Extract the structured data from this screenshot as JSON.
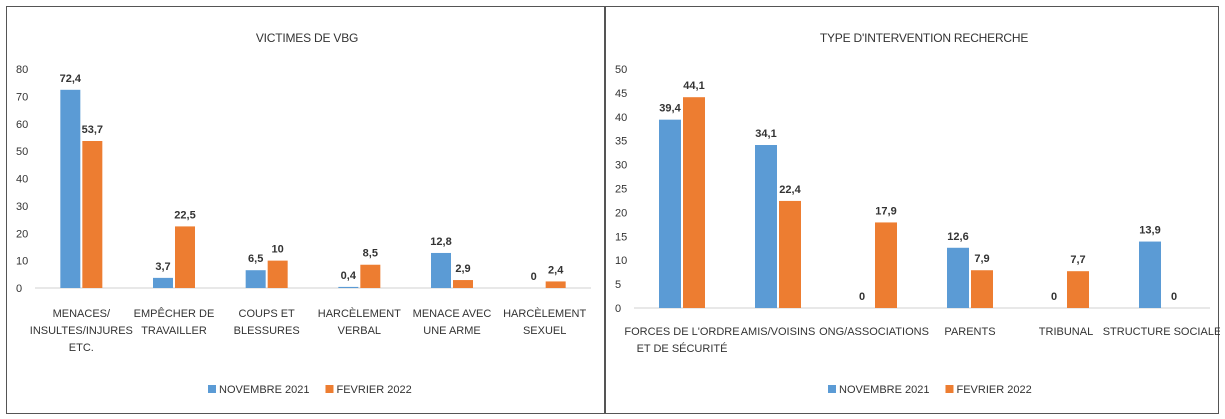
{
  "chart_data": [
    {
      "type": "bar",
      "title": "VICTIMES DE VBG",
      "categories": [
        [
          "MENACES/",
          "INSULTES/INJURES",
          "ETC."
        ],
        [
          "EMPÊCHER DE",
          "TRAVAILLER"
        ],
        [
          "COUPS ET",
          "BLESSURES"
        ],
        [
          "HARCÈLEMENT",
          "VERBAL"
        ],
        [
          "MENACE AVEC",
          "UNE ARME"
        ],
        [
          "HARCÈLEMENT",
          "SEXUEL"
        ]
      ],
      "series": [
        {
          "name": "NOVEMBRE 2021",
          "color": "#5B9BD5",
          "values": [
            72.4,
            3.7,
            6.5,
            0.4,
            12.8,
            0
          ],
          "labels": [
            "72,4",
            "3,7",
            "6,5",
            "0,4",
            "12,8",
            "0"
          ]
        },
        {
          "name": "FEVRIER 2022",
          "color": "#ED7D31",
          "values": [
            53.7,
            22.5,
            10,
            8.5,
            2.9,
            2.4
          ],
          "labels": [
            "53,7",
            "22,5",
            "10",
            "8,5",
            "2,9",
            "2,4"
          ]
        }
      ],
      "ylim": [
        0,
        80
      ],
      "yticks": [
        0,
        10,
        20,
        30,
        40,
        50,
        60,
        70,
        80
      ],
      "grid": false,
      "legend": "bottom"
    },
    {
      "type": "bar",
      "title": "TYPE D'INTERVENTION RECHERCHE",
      "categories": [
        [
          "FORCES DE L'ORDRE",
          "ET DE SÉCURITÉ"
        ],
        [
          "AMIS/VOISINS"
        ],
        [
          "ONG/ASSOCIATIONS"
        ],
        [
          "PARENTS"
        ],
        [
          "TRIBUNAL"
        ],
        [
          "STRUCTURE SOCIALE"
        ]
      ],
      "series": [
        {
          "name": "NOVEMBRE 2021",
          "color": "#5B9BD5",
          "values": [
            39.4,
            34.1,
            0,
            12.6,
            0,
            13.9
          ],
          "labels": [
            "39,4",
            "34,1",
            "0",
            "12,6",
            "0",
            "13,9"
          ]
        },
        {
          "name": "FEVRIER 2022",
          "color": "#ED7D31",
          "values": [
            44.1,
            22.4,
            17.9,
            7.9,
            7.7,
            0
          ],
          "labels": [
            "44,1",
            "22,4",
            "17,9",
            "7,9",
            "7,7",
            "0"
          ]
        }
      ],
      "ylim": [
        0,
        50
      ],
      "yticks": [
        0,
        5,
        10,
        15,
        20,
        25,
        30,
        35,
        40,
        45,
        50
      ],
      "grid": false,
      "legend": "bottom"
    }
  ]
}
